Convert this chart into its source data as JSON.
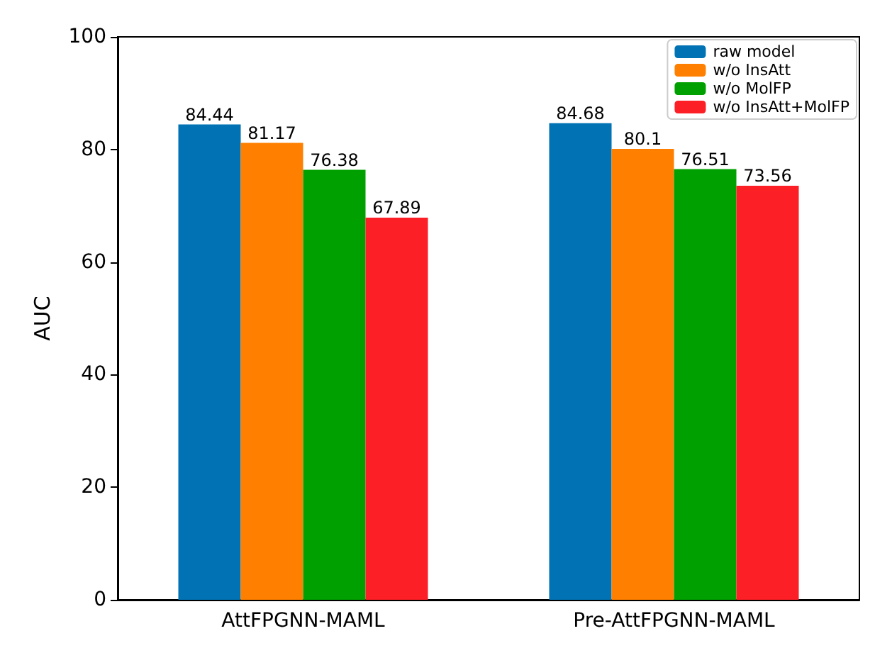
{
  "chart_data": {
    "type": "bar",
    "ylabel": "AUC",
    "categories": [
      "AttFPGNN-MAML",
      "Pre-AttFPGNN-MAML"
    ],
    "series": [
      {
        "name": "raw model",
        "color": "#0173b5",
        "values": [
          84.44,
          84.68
        ]
      },
      {
        "name": "w/o InsAtt",
        "color": "#ff8000",
        "values": [
          81.17,
          80.1
        ]
      },
      {
        "name": "w/o MolFP",
        "color": "#00a000",
        "values": [
          76.38,
          76.51
        ]
      },
      {
        "name": "w/o InsAtt+MolFP",
        "color": "#fc2026",
        "values": [
          67.89,
          73.56
        ]
      }
    ],
    "ylim": [
      0,
      100
    ],
    "yticks": [
      0,
      20,
      40,
      60,
      80,
      100
    ],
    "grid": false,
    "legend": "top right",
    "data_labels": true
  }
}
